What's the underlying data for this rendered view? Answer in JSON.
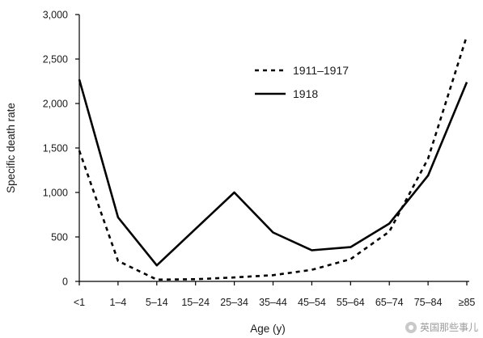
{
  "chart_data": {
    "type": "line",
    "categories": [
      "<1",
      "1–4",
      "5–14",
      "15–24",
      "25–34",
      "35–44",
      "45–54",
      "55–64",
      "65–74",
      "75–84",
      "≥85"
    ],
    "series": [
      {
        "name": "1911–1917",
        "style": "dashed",
        "color": "#000000",
        "values": [
          1470,
          230,
          20,
          25,
          45,
          70,
          130,
          250,
          560,
          1380,
          2760
        ]
      },
      {
        "name": "1918",
        "style": "solid",
        "color": "#000000",
        "values": [
          2270,
          720,
          180,
          590,
          1000,
          550,
          350,
          385,
          650,
          1190,
          2240
        ]
      }
    ],
    "ylabel": "Specific death rate",
    "xlabel": "Age (y)",
    "ylim": [
      0,
      3000
    ],
    "yticks": [
      "0",
      "500",
      "1,000",
      "1,500",
      "2,000",
      "2,500",
      "3,000"
    ],
    "ytick_values": [
      0,
      500,
      1000,
      1500,
      2000,
      2500,
      3000
    ],
    "grid": false,
    "legend_position": "top-center"
  },
  "watermark": {
    "text": "英国那些事儿",
    "icon": "brand-logo-icon"
  }
}
